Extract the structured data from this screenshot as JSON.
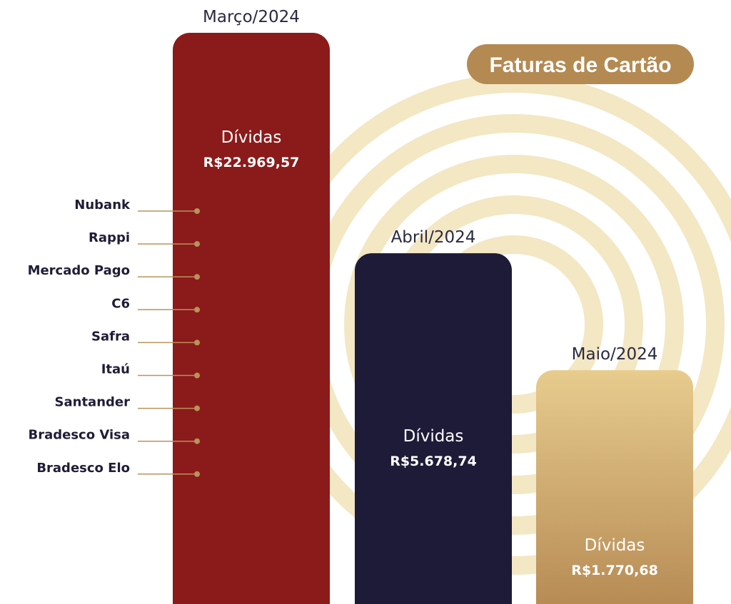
{
  "title": "Faturas de Cartão",
  "colors": {
    "ring": "#f3e7c4",
    "title_pill": "#b48a52",
    "leader": "#b8935a",
    "text_dark": "#1f1c36"
  },
  "chart_data": {
    "type": "bar",
    "title": "Faturas de Cartão",
    "categories": [
      "Março/2024",
      "Abril/2024",
      "Maio/2024"
    ],
    "series": [
      {
        "values": [
          22969.57,
          5678.74,
          1770.68
        ]
      }
    ],
    "bar_label": "Dívidas",
    "value_labels": [
      "R$22.969,57",
      "R$5.678,74",
      "R$1.770,68"
    ],
    "bar_colors": [
      "#8b1a1a",
      "#1e1b38",
      "#c9a567"
    ],
    "banks": [
      "Nubank",
      "Rappi",
      "Mercado Pago",
      "C6",
      "Safra",
      "Itaú",
      "Santander",
      "Bradesco Visa",
      "Bradesco Elo"
    ]
  }
}
